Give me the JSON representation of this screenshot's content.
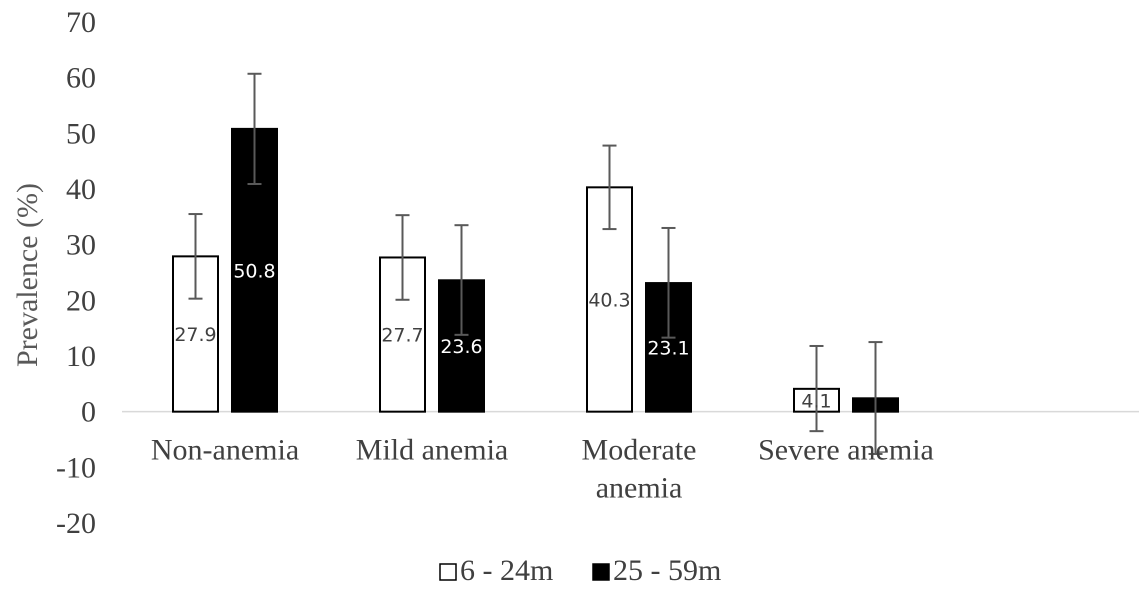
{
  "chart_data": {
    "type": "bar",
    "ylabel": "Prevalence (%)",
    "xlabel": "",
    "ylim": [
      -20,
      70
    ],
    "yticks": [
      -20,
      -10,
      0,
      10,
      20,
      30,
      40,
      50,
      60,
      70
    ],
    "grid": false,
    "legend_position": "bottom-center",
    "categories": [
      [
        "Non-anemia"
      ],
      [
        "Mild anemia"
      ],
      [
        "Moderate",
        "anemia"
      ],
      [
        "Severe anemia"
      ]
    ],
    "series": [
      {
        "name": "6 - 24m",
        "fill": "#ffffff",
        "stroke": "#000000",
        "label_color": "#404040",
        "values": [
          27.9,
          27.7,
          40.3,
          4.1
        ],
        "labels": [
          "27.9",
          "27.7",
          "40.3",
          "4.1"
        ],
        "error_low": [
          20.3,
          20.1,
          32.8,
          -3.5
        ],
        "error_high": [
          35.5,
          35.3,
          47.8,
          11.8
        ]
      },
      {
        "name": "25 - 59m",
        "fill": "#000000",
        "stroke": "#000000",
        "label_color": "#ffffff",
        "values": [
          50.8,
          23.6,
          23.1,
          2.4
        ],
        "labels": [
          "50.8",
          "23.6",
          "23.1",
          ""
        ],
        "error_low": [
          40.9,
          13.8,
          13.3,
          -7.6
        ],
        "error_high": [
          60.7,
          33.5,
          33.0,
          12.5
        ]
      }
    ],
    "colors": {
      "axis_line": "#d9d9d9",
      "error_bar": "#595959",
      "text": "#404040"
    }
  }
}
